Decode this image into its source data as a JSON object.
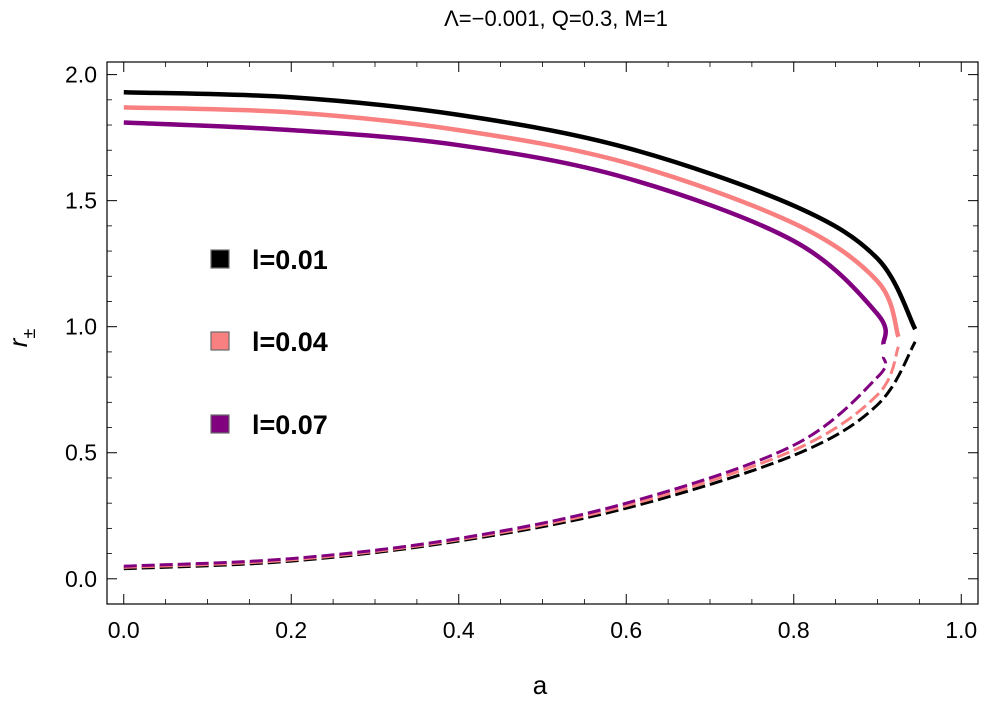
{
  "chart_data": {
    "type": "line",
    "title": "Λ=−0.001, Q=0.3, M=1",
    "xlabel": "a",
    "ylabel": "r",
    "ylabel_subscript": "±",
    "xlim": [
      -0.02,
      1.02
    ],
    "ylim": [
      -0.1,
      2.05
    ],
    "xticks": [
      0.0,
      0.2,
      0.4,
      0.6,
      0.8,
      1.0
    ],
    "xtick_labels": [
      "0.0",
      "0.2",
      "0.4",
      "0.6",
      "0.8",
      "1.0"
    ],
    "yticks": [
      0.0,
      0.5,
      1.0,
      1.5,
      2.0
    ],
    "ytick_labels": [
      "0.0",
      "0.5",
      "1.0",
      "1.5",
      "2.0"
    ],
    "grid": false,
    "legend_placement": "left-center",
    "series": [
      {
        "name": "l=0.01",
        "color": "#000000",
        "a_max": 0.945,
        "outer_horizon_solid": {
          "a": [
            0.0,
            0.2,
            0.4,
            0.6,
            0.8,
            0.9,
            0.945
          ],
          "r": [
            1.93,
            1.91,
            1.84,
            1.71,
            1.48,
            1.27,
            0.99
          ]
        },
        "inner_horizon_dashed": {
          "a": [
            0.0,
            0.2,
            0.4,
            0.6,
            0.8,
            0.9,
            0.945
          ],
          "r": [
            0.04,
            0.07,
            0.15,
            0.28,
            0.49,
            0.69,
            0.94
          ]
        }
      },
      {
        "name": "l=0.04",
        "color": "#F88080",
        "a_max": 0.925,
        "outer_horizon_solid": {
          "a": [
            0.0,
            0.2,
            0.4,
            0.6,
            0.8,
            0.9,
            0.925
          ],
          "r": [
            1.87,
            1.85,
            1.78,
            1.65,
            1.41,
            1.18,
            0.96
          ]
        },
        "inner_horizon_dashed": {
          "a": [
            0.0,
            0.2,
            0.4,
            0.6,
            0.8,
            0.9,
            0.925
          ],
          "r": [
            0.045,
            0.075,
            0.155,
            0.29,
            0.51,
            0.73,
            0.92
          ]
        }
      },
      {
        "name": "l=0.07",
        "color": "#800080",
        "a_max": 0.907,
        "outer_horizon_solid": {
          "a": [
            0.0,
            0.2,
            0.4,
            0.6,
            0.8,
            0.9,
            0.907
          ],
          "r": [
            1.81,
            1.78,
            1.72,
            1.59,
            1.34,
            1.05,
            0.93
          ]
        },
        "inner_horizon_dashed": {
          "a": [
            0.0,
            0.2,
            0.4,
            0.6,
            0.8,
            0.9,
            0.907
          ],
          "r": [
            0.05,
            0.08,
            0.16,
            0.3,
            0.53,
            0.8,
            0.88
          ]
        }
      }
    ]
  }
}
